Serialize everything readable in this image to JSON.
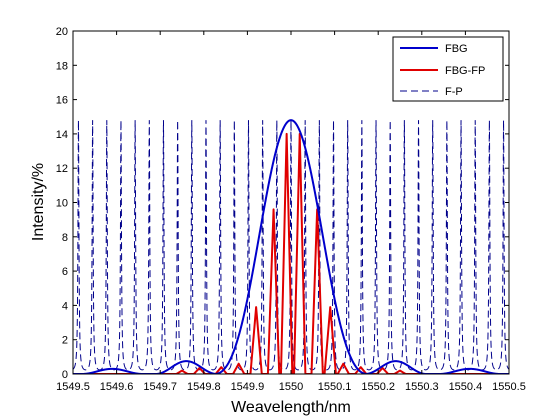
{
  "chart_data": {
    "type": "line",
    "xlabel": "Weavelength/nm",
    "ylabel": "Intensity/%",
    "xlim": [
      1549.5,
      1550.5
    ],
    "ylim": [
      0,
      20
    ],
    "x_ticks": [
      "1549.5",
      "1549.6",
      "1549.7",
      "1549.8",
      "1549.9",
      "1550",
      "1550.1",
      "1550.2",
      "1550.3",
      "1550.4",
      "1550.5"
    ],
    "y_ticks": [
      "0",
      "2",
      "4",
      "6",
      "8",
      "10",
      "12",
      "14",
      "16",
      "18",
      "20"
    ],
    "grid": false,
    "legend_position": "top-right",
    "series": [
      {
        "name": "FBG",
        "color": "#0000cc",
        "style": "solid",
        "peak_wavelength": 1550.0,
        "peak_value": 14.8,
        "sidelobes": [
          {
            "x": 1549.59,
            "y": 0.3
          },
          {
            "x": 1549.76,
            "y": 0.75
          },
          {
            "x": 1550.24,
            "y": 0.75
          },
          {
            "x": 1550.41,
            "y": 0.3
          }
        ]
      },
      {
        "name": "FBG-FP",
        "color": "#e00000",
        "style": "solid",
        "peaks": [
          {
            "x": 1549.75,
            "y": 0.2
          },
          {
            "x": 1549.79,
            "y": 0.35
          },
          {
            "x": 1549.84,
            "y": 0.4
          },
          {
            "x": 1549.88,
            "y": 0.6
          },
          {
            "x": 1549.92,
            "y": 3.9
          },
          {
            "x": 1549.96,
            "y": 9.6
          },
          {
            "x": 1549.99,
            "y": 14.0
          },
          {
            "x": 1550.02,
            "y": 14.0
          },
          {
            "x": 1550.06,
            "y": 9.6
          },
          {
            "x": 1550.09,
            "y": 3.9
          },
          {
            "x": 1550.12,
            "y": 0.6
          },
          {
            "x": 1550.16,
            "y": 0.4
          },
          {
            "x": 1550.21,
            "y": 0.35
          },
          {
            "x": 1550.25,
            "y": 0.2
          }
        ]
      },
      {
        "name": "F-P",
        "color": "#00008b",
        "style": "dashed",
        "peak_value": 14.8,
        "period_nm": 0.0325
      }
    ]
  }
}
